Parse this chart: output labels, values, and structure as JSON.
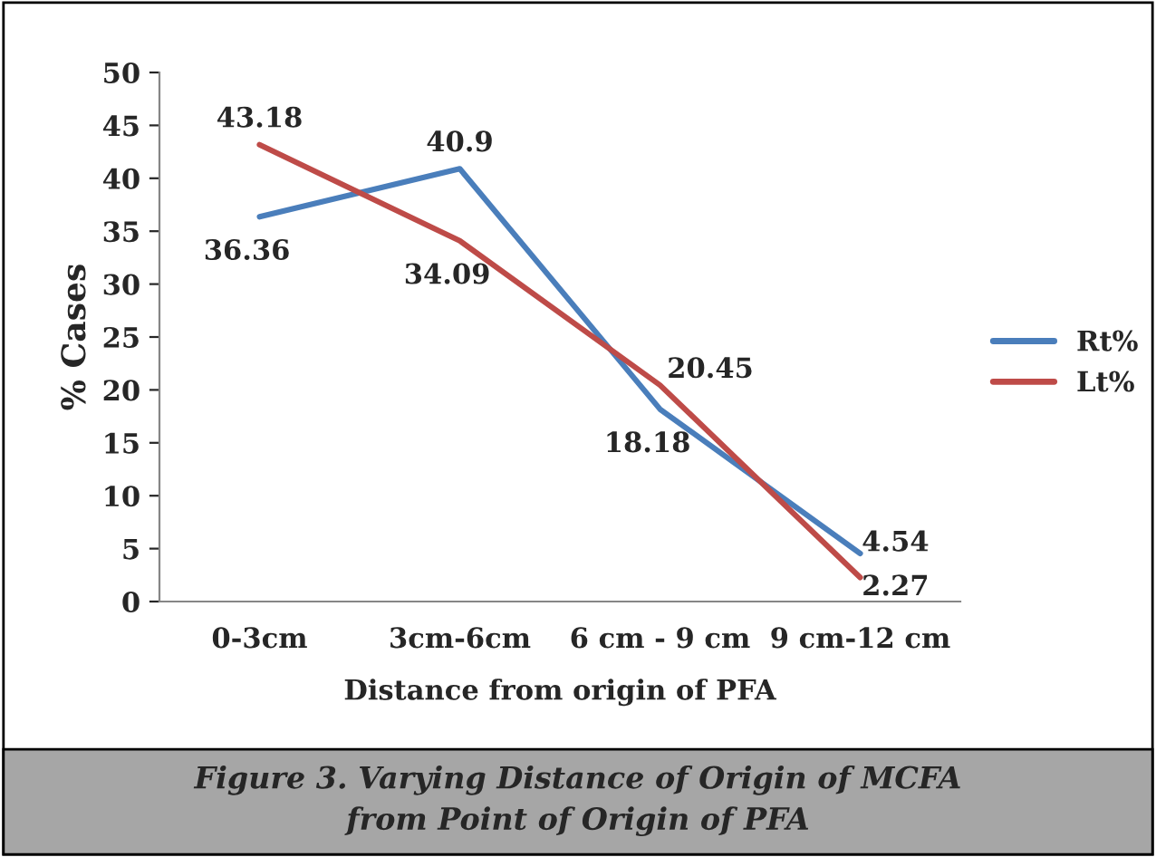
{
  "chart_data": {
    "type": "line",
    "xlabel": "Distance from origin of PFA",
    "ylabel": "% Cases",
    "categories": [
      "0-3cm",
      "3cm-6cm",
      "6 cm - 9 cm",
      "9 cm-12 cm"
    ],
    "series": [
      {
        "name": "Rt%",
        "color": "#4a7ebb",
        "values": [
          36.36,
          40.9,
          18.18,
          4.54
        ]
      },
      {
        "name": "Lt%",
        "color": "#be4b48",
        "values": [
          43.18,
          34.09,
          20.45,
          2.27
        ]
      }
    ],
    "ylim": [
      0,
      50
    ],
    "yticks": [
      0,
      5,
      10,
      15,
      20,
      25,
      30,
      35,
      40,
      45,
      50
    ],
    "data_labels": true,
    "legend": "right",
    "grid": false,
    "marker": "none",
    "line_style": "solid",
    "annotations": [
      "Figure 3. Varying Distance of Origin of MCFA\nfrom Point of Origin of PFA"
    ]
  }
}
